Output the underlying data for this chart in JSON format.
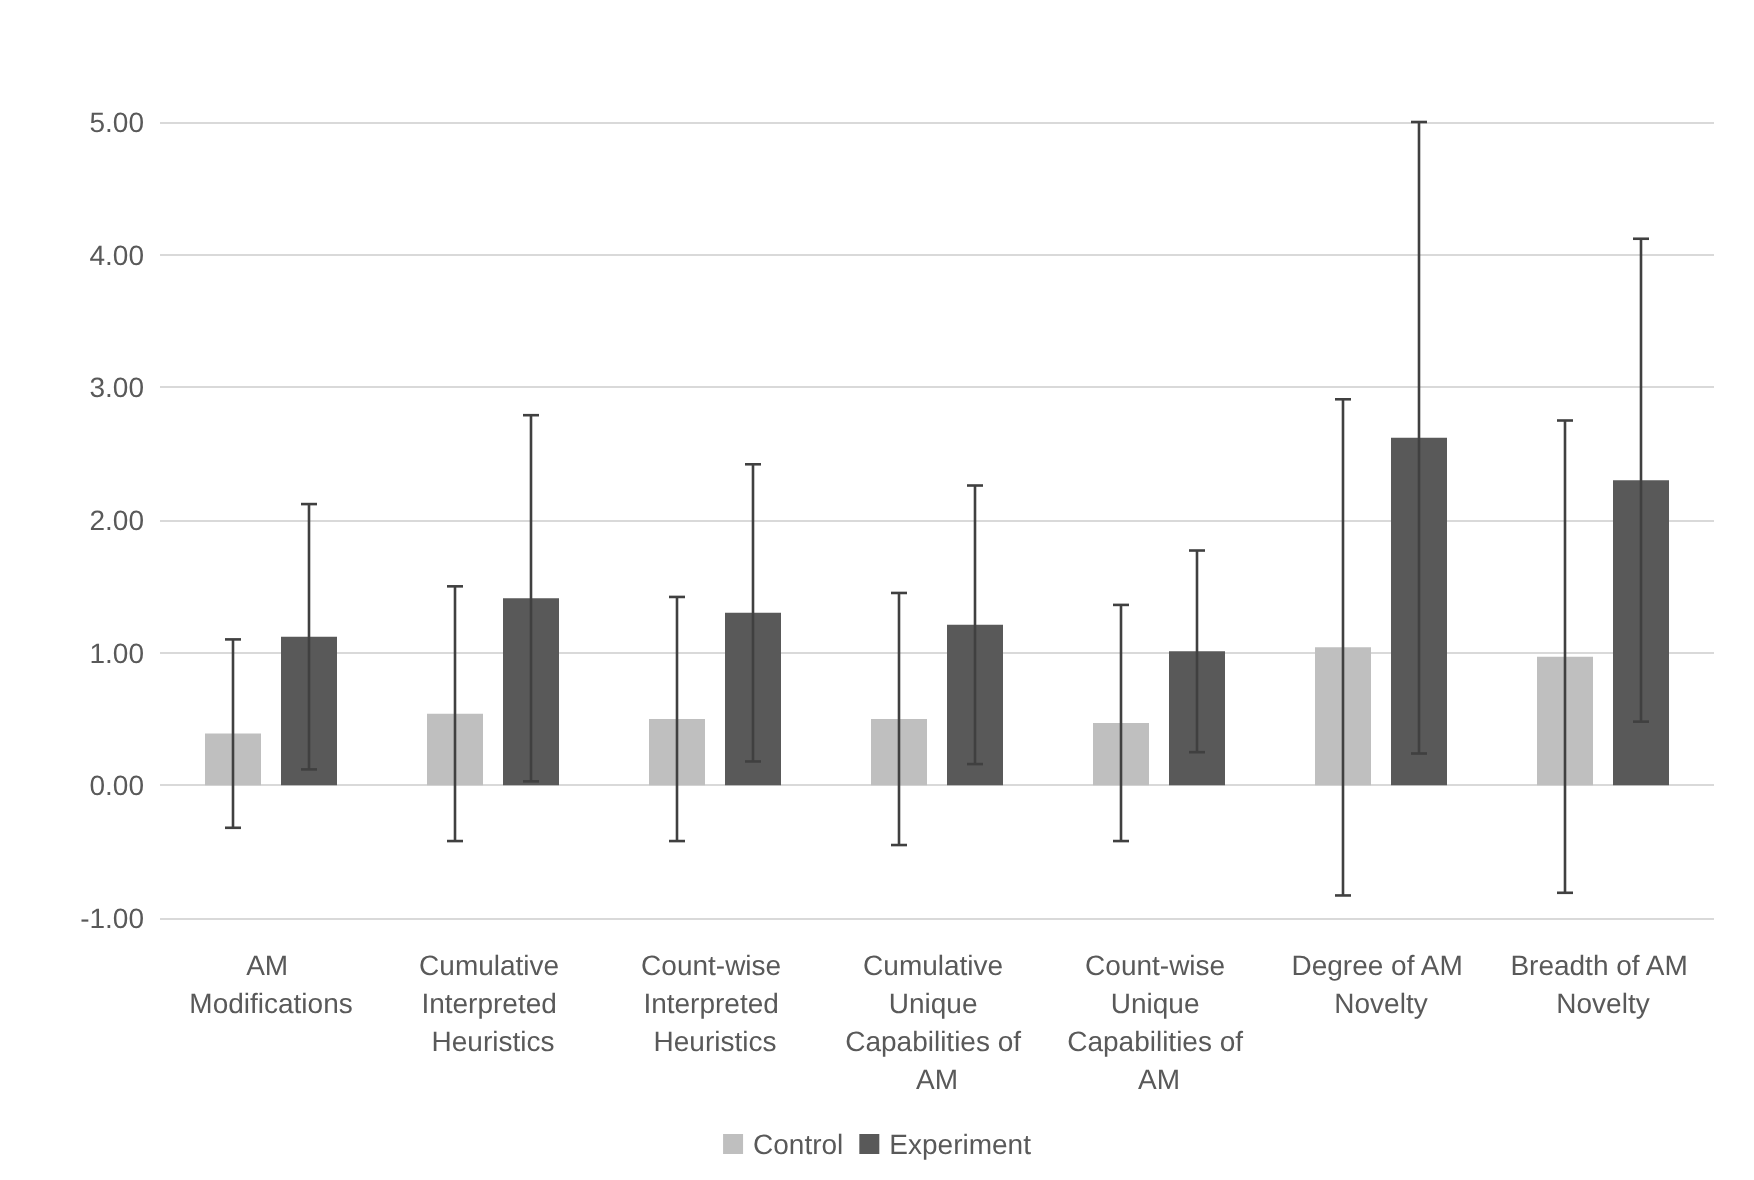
{
  "chart_data": {
    "type": "bar",
    "categories": [
      "AM Modifications",
      "Cumulative Interpreted Heuristics",
      "Count-wise Interpreted Heuristics",
      "Cumulative Unique Capabilities of AM",
      "Count-wise Unique Capabilities of AM",
      "Degree of AM Novelty",
      "Breadth of AM Novelty"
    ],
    "series": [
      {
        "name": "Control",
        "color": "#bfbfbf",
        "values": [
          0.39,
          0.54,
          0.5,
          0.5,
          0.47,
          1.04,
          0.97
        ],
        "errors": [
          0.71,
          0.96,
          0.92,
          0.95,
          0.89,
          1.87,
          1.78
        ]
      },
      {
        "name": "Experiment",
        "color": "#595959",
        "values": [
          1.12,
          1.41,
          1.3,
          1.21,
          1.01,
          2.62,
          2.3
        ],
        "errors": [
          1.0,
          1.38,
          1.12,
          1.05,
          0.76,
          2.38,
          1.82
        ]
      }
    ],
    "ylim": [
      -1,
      5
    ],
    "yticks": [
      {
        "value": -1,
        "label": "-1.00"
      },
      {
        "value": 0,
        "label": "0.00"
      },
      {
        "value": 1,
        "label": "1.00"
      },
      {
        "value": 2,
        "label": "2.00"
      },
      {
        "value": 3,
        "label": "3.00"
      },
      {
        "value": 4,
        "label": "4.00"
      },
      {
        "value": 5,
        "label": "5.00"
      }
    ],
    "grid": "y",
    "legend": "bottom"
  }
}
